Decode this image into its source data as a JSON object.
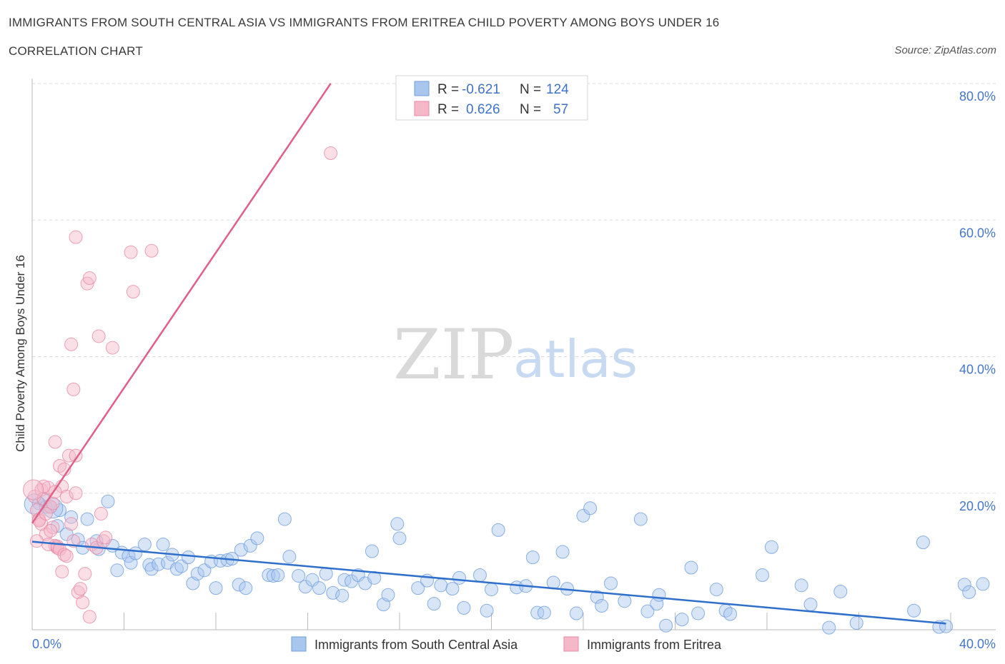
{
  "title": "IMMIGRANTS FROM SOUTH CENTRAL ASIA VS IMMIGRANTS FROM ERITREA CHILD POVERTY AMONG BOYS UNDER 16",
  "subtitle": "CORRELATION CHART",
  "source": "Source: ZipAtlas.com",
  "watermark": {
    "zip": "ZIP",
    "atlas": "atlas"
  },
  "colors": {
    "blue_fill": "#a9c6ee",
    "blue_stroke": "#6f9ede",
    "blue_line": "#2f6fcc",
    "pink_fill": "#f5b8c9",
    "pink_stroke": "#e98aa5",
    "pink_line": "#e0608a",
    "grid": "#dedede",
    "axis_text": "#4477cc"
  },
  "legend": {
    "r_label": "R =",
    "n_label": "N =",
    "blue": {
      "r": "-0.621",
      "n": "124"
    },
    "pink": {
      "r": "0.626",
      "n": "57"
    }
  },
  "bottom_legend": {
    "blue": "Immigrants from South Central Asia",
    "pink": "Immigrants from Eritrea"
  },
  "chart_data": {
    "type": "scatter",
    "ylabel": "Child Poverty Among Boys Under 16",
    "xlim": [
      0,
      40
    ],
    "ylim": [
      0,
      80
    ],
    "x_tick_labels": {
      "min": "0.0%",
      "max": "40.0%"
    },
    "y_ticks": [
      20,
      40,
      60,
      80
    ],
    "y_tick_labels": [
      "20.0%",
      "40.0%",
      "60.0%",
      "80.0%"
    ],
    "grid": true,
    "legend_position": "top-center",
    "series": [
      {
        "name": "Immigrants from South Central Asia",
        "color": "#a9c6ee",
        "trend": {
          "x": [
            0,
            39.8
          ],
          "y": [
            12.9,
            0.9
          ]
        },
        "points": [
          [
            0.3,
            18.5
          ],
          [
            0.5,
            19.0
          ],
          [
            0.6,
            18.0
          ],
          [
            0.8,
            18.0
          ],
          [
            1.2,
            17.5
          ],
          [
            1.1,
            15.2
          ],
          [
            1.7,
            16.5
          ],
          [
            2.4,
            16.2
          ],
          [
            3.3,
            18.8
          ],
          [
            1.5,
            14.0
          ],
          [
            2.0,
            13.2
          ],
          [
            2.2,
            12.0
          ],
          [
            2.8,
            13.0
          ],
          [
            2.9,
            11.8
          ],
          [
            3.5,
            12.3
          ],
          [
            3.7,
            8.7
          ],
          [
            3.9,
            11.3
          ],
          [
            4.2,
            10.8
          ],
          [
            4.3,
            9.8
          ],
          [
            4.5,
            11.2
          ],
          [
            4.9,
            12.5
          ],
          [
            5.1,
            9.5
          ],
          [
            5.2,
            8.9
          ],
          [
            5.5,
            9.6
          ],
          [
            5.7,
            12.5
          ],
          [
            5.9,
            9.8
          ],
          [
            6.1,
            11.0
          ],
          [
            6.3,
            8.9
          ],
          [
            6.5,
            9.3
          ],
          [
            6.8,
            10.6
          ],
          [
            7.0,
            6.8
          ],
          [
            7.2,
            8.2
          ],
          [
            7.5,
            8.7
          ],
          [
            7.8,
            10.0
          ],
          [
            8.0,
            6.1
          ],
          [
            8.2,
            10.1
          ],
          [
            8.5,
            10.2
          ],
          [
            8.7,
            10.4
          ],
          [
            9.0,
            6.6
          ],
          [
            9.1,
            11.7
          ],
          [
            9.3,
            6.1
          ],
          [
            9.5,
            12.3
          ],
          [
            9.8,
            13.4
          ],
          [
            10.3,
            8.0
          ],
          [
            10.5,
            7.9
          ],
          [
            10.7,
            8.0
          ],
          [
            11.0,
            16.2
          ],
          [
            11.2,
            10.7
          ],
          [
            11.6,
            7.9
          ],
          [
            11.9,
            6.3
          ],
          [
            12.2,
            7.3
          ],
          [
            12.5,
            6.1
          ],
          [
            12.8,
            8.2
          ],
          [
            13.1,
            5.4
          ],
          [
            13.5,
            5.0
          ],
          [
            13.6,
            7.3
          ],
          [
            13.9,
            7.1
          ],
          [
            14.2,
            8.0
          ],
          [
            14.5,
            6.8
          ],
          [
            14.8,
            11.5
          ],
          [
            14.9,
            7.6
          ],
          [
            15.3,
            3.7
          ],
          [
            15.5,
            5.1
          ],
          [
            15.9,
            15.5
          ],
          [
            16.0,
            13.4
          ],
          [
            16.8,
            6.1
          ],
          [
            17.2,
            7.2
          ],
          [
            17.5,
            3.8
          ],
          [
            17.8,
            6.5
          ],
          [
            18.3,
            6.0
          ],
          [
            18.6,
            7.6
          ],
          [
            18.8,
            3.2
          ],
          [
            19.5,
            8.0
          ],
          [
            19.8,
            2.8
          ],
          [
            20.0,
            5.9
          ],
          [
            20.3,
            14.6
          ],
          [
            21.1,
            6.2
          ],
          [
            21.5,
            6.4
          ],
          [
            21.8,
            10.6
          ],
          [
            22.0,
            2.5
          ],
          [
            22.3,
            2.5
          ],
          [
            22.7,
            6.9
          ],
          [
            23.1,
            11.4
          ],
          [
            23.3,
            6.0
          ],
          [
            23.7,
            2.4
          ],
          [
            24.0,
            16.7
          ],
          [
            24.3,
            17.8
          ],
          [
            24.6,
            4.8
          ],
          [
            24.8,
            3.5
          ],
          [
            25.2,
            6.8
          ],
          [
            25.8,
            4.2
          ],
          [
            26.5,
            16.2
          ],
          [
            26.8,
            2.7
          ],
          [
            27.2,
            3.8
          ],
          [
            27.3,
            5.1
          ],
          [
            27.6,
            0.6
          ],
          [
            28.3,
            1.5
          ],
          [
            28.7,
            9.1
          ],
          [
            29.0,
            2.4
          ],
          [
            29.8,
            5.9
          ],
          [
            30.2,
            2.8
          ],
          [
            30.4,
            2.3
          ],
          [
            31.8,
            8.0
          ],
          [
            32.2,
            12.1
          ],
          [
            33.5,
            6.5
          ],
          [
            33.9,
            3.7
          ],
          [
            34.7,
            0.3
          ],
          [
            35.2,
            5.6
          ],
          [
            35.9,
            1.0
          ],
          [
            38.4,
            2.8
          ],
          [
            38.8,
            12.8
          ],
          [
            39.5,
            0.4
          ],
          [
            39.8,
            0.5
          ],
          [
            40.6,
            6.6
          ],
          [
            40.8,
            5.5
          ],
          [
            41.4,
            6.7
          ]
        ],
        "large_points": [
          [
            0.1,
            18.4
          ],
          [
            0.9,
            17.8
          ]
        ]
      },
      {
        "name": "Immigrants from Eritrea",
        "color": "#f5b8c9",
        "trend": {
          "x": [
            0,
            13.0
          ],
          "y": [
            15.6,
            80.0
          ]
        },
        "points": [
          [
            0.1,
            19.5
          ],
          [
            0.2,
            17.5
          ],
          [
            0.3,
            16.2
          ],
          [
            0.4,
            20.5
          ],
          [
            0.5,
            19.2
          ],
          [
            0.6,
            14.0
          ],
          [
            0.7,
            20.8
          ],
          [
            0.8,
            18.0
          ],
          [
            0.9,
            15.0
          ],
          [
            1.0,
            12.3
          ],
          [
            1.1,
            12.0
          ],
          [
            1.2,
            24.0
          ],
          [
            1.3,
            21.0
          ],
          [
            1.4,
            23.5
          ],
          [
            1.5,
            19.5
          ],
          [
            1.6,
            25.5
          ],
          [
            1.7,
            15.5
          ],
          [
            1.8,
            13.0
          ],
          [
            1.9,
            20.0
          ],
          [
            0.2,
            13.0
          ],
          [
            0.4,
            15.5
          ],
          [
            0.5,
            21.0
          ],
          [
            0.7,
            12.5
          ],
          [
            0.8,
            14.5
          ],
          [
            1.0,
            27.5
          ],
          [
            1.1,
            12.2
          ],
          [
            1.2,
            11.8
          ],
          [
            1.3,
            8.5
          ],
          [
            1.4,
            11.0
          ],
          [
            1.7,
            41.8
          ],
          [
            1.8,
            35.2
          ],
          [
            1.9,
            25.5
          ],
          [
            1.5,
            10.8
          ],
          [
            2.0,
            5.5
          ],
          [
            2.1,
            6.0
          ],
          [
            2.2,
            4.0
          ],
          [
            2.3,
            8.2
          ],
          [
            2.5,
            1.9
          ],
          [
            2.6,
            12.5
          ],
          [
            2.8,
            12.0
          ],
          [
            3.0,
            17.0
          ],
          [
            3.1,
            13.0
          ],
          [
            3.2,
            13.5
          ],
          [
            1.9,
            57.5
          ],
          [
            2.4,
            50.7
          ],
          [
            2.5,
            51.5
          ],
          [
            2.9,
            43.0
          ],
          [
            3.5,
            41.3
          ],
          [
            4.3,
            55.3
          ],
          [
            4.4,
            49.5
          ],
          [
            5.2,
            55.5
          ],
          [
            13.0,
            69.8
          ],
          [
            0.3,
            16.0
          ],
          [
            0.6,
            17.0
          ],
          [
            0.9,
            18.5
          ],
          [
            1.0,
            20.2
          ]
        ],
        "large_points": [
          [
            0.05,
            20.5
          ]
        ]
      }
    ]
  }
}
